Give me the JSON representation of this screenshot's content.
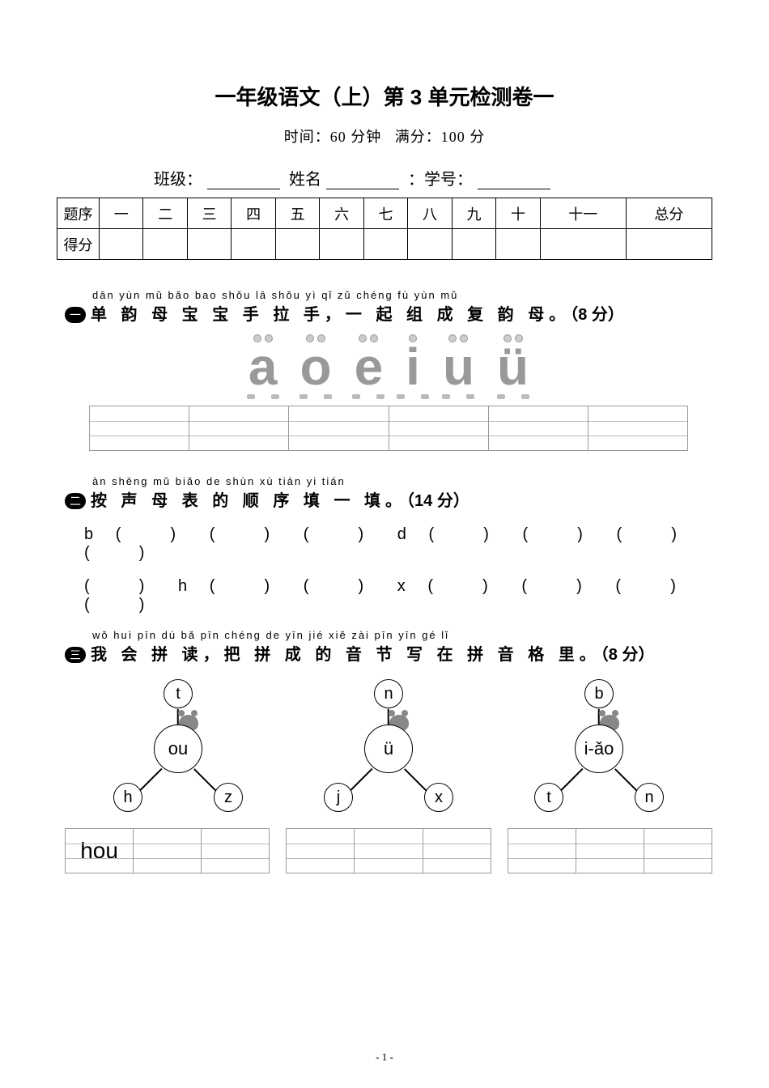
{
  "title": "一年级语文（上）第 3 单元检测卷一",
  "subtitle_time_label": "时间：",
  "subtitle_time_value": "60 分钟",
  "subtitle_score_label": "满分：",
  "subtitle_score_value": "100 分",
  "info": {
    "class_label": "班级：",
    "name_label": "姓名",
    "id_label": "：学号："
  },
  "score_table": {
    "row_label": "题序",
    "score_label": "得分",
    "cols": [
      "一",
      "二",
      "三",
      "四",
      "五",
      "六",
      "七",
      "八",
      "九",
      "十",
      "十一",
      "总分"
    ]
  },
  "q1": {
    "num": "一",
    "pinyin": "dān yùn mǔ bǎo bao shǒu  lā  shǒu     yì   qǐ  zǔ  chéng fù  yùn mǔ",
    "text": "单 韵 母 宝 宝 手 拉 手，一 起 组  成   复 韵 母。",
    "points": "（8 分）",
    "vowels": [
      "a",
      "o",
      "e",
      "i",
      "u",
      "ü"
    ],
    "grid_cells": 6
  },
  "q2": {
    "num": "二",
    "pinyin": "àn shēng mǔ biǎo de shùn xù tián yi  tián",
    "text": "按 声 母 表 的  顺  序 填 一 填。",
    "points": "（14 分）",
    "row1": [
      "b",
      "(   )",
      "(   )",
      "(   )",
      "d",
      "(   )",
      "(   )",
      "(   )",
      "(   )"
    ],
    "row2": [
      "(   )",
      "h",
      "(   )",
      "(   )",
      "x",
      "(   )",
      "(   )",
      "(   )",
      "(   )"
    ]
  },
  "q3": {
    "num": "三",
    "pinyin": "wǒ huì pīn dú    bǎ pīn chéng de yīn  jié  xiě zài pīn yīn gé  lǐ",
    "text": "我 会 拼 读，把 拼  成   的 音 节 写 在 拼 音 格 里。",
    "points": "（8 分）",
    "diagrams": [
      {
        "top": "t",
        "mid": "ou",
        "bl": "h",
        "br": "z"
      },
      {
        "top": "n",
        "mid": "ü",
        "bl": "j",
        "br": "x"
      },
      {
        "top": "b",
        "mid": "i-ǎo",
        "bl": "t",
        "br": "n"
      }
    ],
    "answer_cells": [
      [
        "hou",
        "",
        ""
      ],
      [
        "",
        "",
        ""
      ],
      [
        "",
        "",
        ""
      ]
    ]
  },
  "page_num": "- 1 -"
}
